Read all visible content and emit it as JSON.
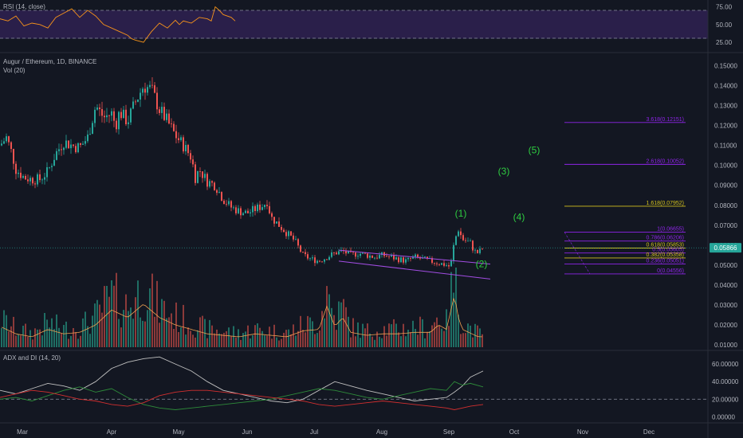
{
  "panes": {
    "rsi": {
      "title": "RSI (14, close)"
    },
    "main": {
      "title": "Augur / Ethereum, 1D, BINANCE",
      "volume_title": "Vol (20)"
    },
    "adx": {
      "title": "ADX and DI (14, 20)"
    }
  },
  "colors": {
    "background": "#131722",
    "up": "#26a69a",
    "down": "#ef5350",
    "rsi_line": "#f7931a",
    "rsi_band": "#2a1f4a",
    "wave": "#2ecc40",
    "fib_violet": "#8e24e8",
    "fib_gold": "#d4c21c",
    "channel": "#a24de3",
    "price_badge": "#26a69a"
  },
  "chart_data": [
    {
      "type": "line",
      "name": "rsi-pane",
      "ylim": [
        15,
        80
      ],
      "y_ticks": [
        "75.00",
        "50.00",
        "25.00"
      ],
      "levels": [
        70,
        30
      ],
      "series": [
        {
          "name": "RSI",
          "x": [
            0,
            10,
            20,
            30,
            40,
            50,
            60,
            70,
            80,
            90,
            100,
            110,
            120,
            130,
            140,
            150,
            160,
            165,
            170,
            180,
            190,
            200,
            210,
            220,
            225,
            230,
            240,
            250,
            260,
            265,
            270,
            275,
            280,
            290,
            295
          ],
          "values": [
            58,
            55,
            62,
            48,
            52,
            50,
            45,
            60,
            66,
            72,
            60,
            70,
            62,
            50,
            45,
            40,
            35,
            30,
            28,
            25,
            40,
            52,
            45,
            56,
            50,
            55,
            52,
            60,
            58,
            55,
            75,
            70,
            64,
            60,
            55
          ]
        }
      ]
    },
    {
      "type": "candlestick",
      "name": "price-pane",
      "ylim": [
        0.0088,
        0.155
      ],
      "y_ticks": [
        "0.15000",
        "0.14000",
        "0.13000",
        "0.12000",
        "0.11000",
        "0.10000",
        "0.09000",
        "0.08000",
        "0.07000",
        "0.06000",
        "0.05000",
        "0.04000",
        "0.03000",
        "0.02000",
        "0.01000"
      ],
      "x_ticks": [
        "Mar",
        "Apr",
        "May",
        "Jun",
        "Jul",
        "Aug",
        "Sep",
        "Oct",
        "Nov",
        "Dec"
      ],
      "last_price": "0.05866",
      "close_path": [
        [
          0,
          0.11
        ],
        [
          8,
          0.114
        ],
        [
          15,
          0.106
        ],
        [
          20,
          0.098
        ],
        [
          30,
          0.094
        ],
        [
          40,
          0.093
        ],
        [
          50,
          0.093
        ],
        [
          60,
          0.097
        ],
        [
          70,
          0.106
        ],
        [
          80,
          0.112
        ],
        [
          90,
          0.11
        ],
        [
          100,
          0.109
        ],
        [
          110,
          0.114
        ],
        [
          120,
          0.13
        ],
        [
          130,
          0.124
        ],
        [
          140,
          0.126
        ],
        [
          145,
          0.12
        ],
        [
          150,
          0.127
        ],
        [
          160,
          0.122
        ],
        [
          170,
          0.132
        ],
        [
          180,
          0.14
        ],
        [
          190,
          0.138
        ],
        [
          200,
          0.128
        ],
        [
          210,
          0.122
        ],
        [
          220,
          0.115
        ],
        [
          230,
          0.11
        ],
        [
          240,
          0.104
        ],
        [
          245,
          0.094
        ],
        [
          250,
          0.098
        ],
        [
          260,
          0.092
        ],
        [
          270,
          0.09
        ],
        [
          280,
          0.083
        ],
        [
          290,
          0.079
        ],
        [
          300,
          0.077
        ],
        [
          310,
          0.076
        ],
        [
          320,
          0.078
        ],
        [
          330,
          0.08
        ],
        [
          335,
          0.082
        ],
        [
          340,
          0.074
        ],
        [
          350,
          0.07
        ],
        [
          360,
          0.066
        ],
        [
          370,
          0.062
        ],
        [
          380,
          0.055
        ],
        [
          390,
          0.053
        ],
        [
          400,
          0.052
        ],
        [
          410,
          0.054
        ],
        [
          420,
          0.056
        ],
        [
          430,
          0.057
        ],
        [
          440,
          0.055
        ],
        [
          450,
          0.056
        ],
        [
          460,
          0.055
        ],
        [
          470,
          0.054
        ],
        [
          480,
          0.055
        ],
        [
          490,
          0.054
        ],
        [
          500,
          0.053
        ],
        [
          510,
          0.052
        ],
        [
          520,
          0.054
        ],
        [
          530,
          0.053
        ],
        [
          540,
          0.052
        ],
        [
          550,
          0.051
        ],
        [
          560,
          0.05
        ],
        [
          565,
          0.049
        ],
        [
          570,
          0.062
        ],
        [
          575,
          0.068
        ],
        [
          580,
          0.063
        ],
        [
          590,
          0.061
        ],
        [
          595,
          0.057
        ],
        [
          600,
          0.056
        ],
        [
          606,
          0.05866
        ]
      ],
      "volume": [
        [
          0,
          0.028
        ],
        [
          20,
          0.018
        ],
        [
          40,
          0.014
        ],
        [
          60,
          0.024
        ],
        [
          80,
          0.018
        ],
        [
          100,
          0.02
        ],
        [
          120,
          0.03
        ],
        [
          140,
          0.05
        ],
        [
          160,
          0.04
        ],
        [
          180,
          0.058
        ],
        [
          200,
          0.04
        ],
        [
          220,
          0.03
        ],
        [
          240,
          0.024
        ],
        [
          260,
          0.018
        ],
        [
          280,
          0.016
        ],
        [
          300,
          0.014
        ],
        [
          320,
          0.018
        ],
        [
          340,
          0.016
        ],
        [
          360,
          0.014
        ],
        [
          380,
          0.022
        ],
        [
          400,
          0.024
        ],
        [
          410,
          0.055
        ],
        [
          420,
          0.028
        ],
        [
          430,
          0.04
        ],
        [
          440,
          0.02
        ],
        [
          460,
          0.016
        ],
        [
          480,
          0.018
        ],
        [
          500,
          0.018
        ],
        [
          520,
          0.02
        ],
        [
          540,
          0.02
        ],
        [
          550,
          0.03
        ],
        [
          560,
          0.024
        ],
        [
          570,
          0.07
        ],
        [
          575,
          0.04
        ],
        [
          580,
          0.024
        ],
        [
          600,
          0.014
        ]
      ],
      "volume_max": 0.075
    },
    {
      "type": "line",
      "name": "adx-pane",
      "ylim": [
        -6,
        70
      ],
      "y_ticks": [
        "60.00000",
        "40.00000",
        "20.00000",
        "0.00000"
      ],
      "series": [
        {
          "name": "ADX",
          "color": "#c0c0c0",
          "x": [
            0,
            20,
            40,
            60,
            80,
            100,
            120,
            140,
            160,
            180,
            200,
            220,
            240,
            260,
            280,
            300,
            320,
            340,
            360,
            380,
            400,
            420,
            440,
            460,
            480,
            500,
            520,
            540,
            560,
            570,
            580,
            590,
            606
          ],
          "values": [
            30,
            26,
            32,
            38,
            35,
            30,
            40,
            55,
            62,
            66,
            68,
            60,
            52,
            40,
            30,
            26,
            22,
            18,
            16,
            20,
            30,
            40,
            35,
            30,
            26,
            22,
            18,
            20,
            22,
            28,
            35,
            45,
            52
          ]
        },
        {
          "name": "+DI",
          "color": "#2e8b3a",
          "x": [
            0,
            20,
            40,
            60,
            80,
            100,
            120,
            140,
            160,
            180,
            200,
            220,
            240,
            260,
            280,
            300,
            320,
            340,
            360,
            380,
            400,
            420,
            440,
            460,
            480,
            500,
            520,
            540,
            560,
            570,
            580,
            590,
            606
          ],
          "values": [
            20,
            22,
            18,
            24,
            30,
            34,
            28,
            32,
            22,
            14,
            10,
            8,
            10,
            12,
            14,
            16,
            18,
            20,
            24,
            28,
            32,
            30,
            26,
            22,
            20,
            24,
            28,
            32,
            30,
            40,
            36,
            38,
            34
          ]
        },
        {
          "name": "-DI",
          "color": "#d32f2f",
          "x": [
            0,
            20,
            40,
            60,
            80,
            100,
            120,
            140,
            160,
            180,
            200,
            220,
            240,
            260,
            280,
            300,
            320,
            340,
            360,
            380,
            400,
            420,
            440,
            460,
            480,
            500,
            520,
            540,
            560,
            570,
            580,
            590,
            606
          ],
          "values": [
            22,
            26,
            30,
            28,
            24,
            20,
            18,
            14,
            12,
            16,
            24,
            28,
            30,
            30,
            28,
            26,
            24,
            22,
            20,
            18,
            14,
            12,
            14,
            16,
            18,
            16,
            14,
            12,
            10,
            8,
            10,
            12,
            14
          ]
        }
      ]
    }
  ],
  "waves": [
    {
      "label": "(1)",
      "x": 578,
      "price": 0.0743
    },
    {
      "label": "(2)",
      "x": 604,
      "price": 0.049
    },
    {
      "label": "(3)",
      "x": 632,
      "price": 0.0955
    },
    {
      "label": "(4)",
      "x": 651,
      "price": 0.0725
    },
    {
      "label": "(5)",
      "x": 670,
      "price": 0.106
    }
  ],
  "fib_levels": [
    {
      "label": "3.618(0.12151)",
      "price": 0.12151,
      "tone": "violet"
    },
    {
      "label": "2.618(0.10052)",
      "price": 0.10052,
      "tone": "violet"
    },
    {
      "label": "1.618(0.07952)",
      "price": 0.07952,
      "tone": "gold"
    },
    {
      "label": "1(0.06655)",
      "price": 0.06655,
      "tone": "violet"
    },
    {
      "label": "0.786(0.06206)",
      "price": 0.06206,
      "tone": "violet"
    },
    {
      "label": "0.618(0.05853)",
      "price": 0.05853,
      "tone": "gold"
    },
    {
      "label": "0.5(0.05605)",
      "price": 0.05605,
      "tone": "violet"
    },
    {
      "label": "0.382(0.05358)",
      "price": 0.05358,
      "tone": "gold"
    },
    {
      "label": "0.236(0.05051)",
      "price": 0.05051,
      "tone": "violet"
    },
    {
      "label": "0(0.04556)",
      "price": 0.04556,
      "tone": "violet"
    }
  ]
}
